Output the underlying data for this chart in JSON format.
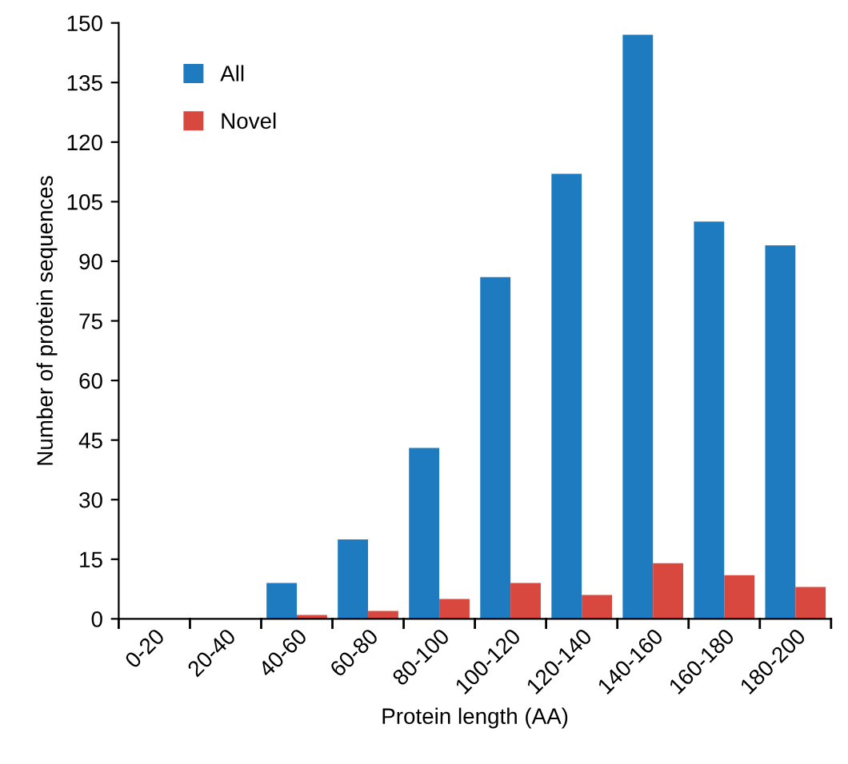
{
  "chart_data": {
    "type": "bar",
    "xlabel": "Protein length (AA)",
    "ylabel": "Number of protein sequences",
    "categories": [
      "0-20",
      "20-40",
      "40-60",
      "60-80",
      "80-100",
      "100-120",
      "120-140",
      "140-160",
      "160-180",
      "180-200"
    ],
    "series": [
      {
        "name": "All",
        "color": "#1f7bbf",
        "values": [
          0,
          0,
          9,
          20,
          43,
          86,
          112,
          147,
          100,
          94
        ]
      },
      {
        "name": "Novel",
        "color": "#d9483f",
        "values": [
          0,
          0,
          1,
          2,
          5,
          9,
          6,
          14,
          11,
          8
        ]
      }
    ],
    "ylim": [
      0,
      150
    ],
    "yticks": [
      0,
      15,
      30,
      45,
      60,
      75,
      90,
      105,
      120,
      135,
      150
    ],
    "grid": false,
    "legend": "top left"
  }
}
